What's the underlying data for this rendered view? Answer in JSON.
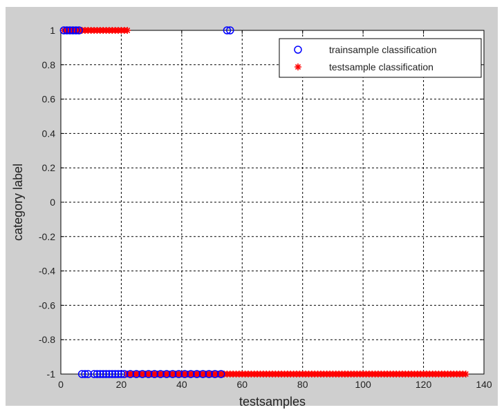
{
  "chart_data": {
    "type": "scatter",
    "title": "",
    "xlabel": "testsamples",
    "ylabel": "category label",
    "xlim": [
      0,
      140
    ],
    "ylim": [
      -1,
      1
    ],
    "x_ticks": [
      0,
      20,
      40,
      60,
      80,
      100,
      120,
      140
    ],
    "y_ticks": [
      -1,
      -0.8,
      -0.6,
      -0.4,
      -0.2,
      0,
      0.2,
      0.4,
      0.6,
      0.8,
      1
    ],
    "grid": true,
    "legend_position": "top-right",
    "series": [
      {
        "name": "trainsample classification",
        "marker": "circle",
        "color": "#0000ff",
        "points": [
          [
            1,
            1
          ],
          [
            2,
            1
          ],
          [
            3,
            1
          ],
          [
            4,
            1
          ],
          [
            5,
            1
          ],
          [
            6,
            1
          ],
          [
            55,
            1
          ],
          [
            56,
            1
          ],
          [
            7,
            -1
          ],
          [
            8,
            -1
          ],
          [
            9,
            -1
          ],
          [
            11,
            -1
          ],
          [
            12,
            -1
          ],
          [
            13,
            -1
          ],
          [
            14,
            -1
          ],
          [
            15,
            -1
          ],
          [
            16,
            -1
          ],
          [
            17,
            -1
          ],
          [
            18,
            -1
          ],
          [
            19,
            -1
          ],
          [
            20,
            -1
          ],
          [
            21,
            -1
          ],
          [
            23,
            -1
          ],
          [
            25,
            -1
          ],
          [
            27,
            -1
          ],
          [
            29,
            -1
          ],
          [
            31,
            -1
          ],
          [
            33,
            -1
          ],
          [
            35,
            -1
          ],
          [
            37,
            -1
          ],
          [
            39,
            -1
          ],
          [
            41,
            -1
          ],
          [
            43,
            -1
          ],
          [
            45,
            -1
          ],
          [
            47,
            -1
          ],
          [
            49,
            -1
          ],
          [
            51,
            -1
          ],
          [
            53,
            -1
          ]
        ]
      },
      {
        "name": "testsample classification",
        "marker": "star",
        "color": "#ff0000",
        "points": [
          [
            1,
            1
          ],
          [
            2,
            1
          ],
          [
            3,
            1
          ],
          [
            4,
            1
          ],
          [
            5,
            1
          ],
          [
            6,
            1
          ],
          [
            7,
            1
          ],
          [
            8,
            1
          ],
          [
            9,
            1
          ],
          [
            10,
            1
          ],
          [
            11,
            1
          ],
          [
            12,
            1
          ],
          [
            13,
            1
          ],
          [
            14,
            1
          ],
          [
            15,
            1
          ],
          [
            16,
            1
          ],
          [
            17,
            1
          ],
          [
            18,
            1
          ],
          [
            19,
            1
          ],
          [
            20,
            1
          ],
          [
            21,
            1
          ],
          [
            22,
            1
          ],
          [
            22,
            -1
          ],
          [
            23,
            -1
          ],
          [
            24,
            -1
          ],
          [
            25,
            -1
          ],
          [
            26,
            -1
          ],
          [
            27,
            -1
          ],
          [
            28,
            -1
          ],
          [
            29,
            -1
          ],
          [
            30,
            -1
          ],
          [
            31,
            -1
          ],
          [
            32,
            -1
          ],
          [
            33,
            -1
          ],
          [
            34,
            -1
          ],
          [
            35,
            -1
          ],
          [
            36,
            -1
          ],
          [
            37,
            -1
          ],
          [
            38,
            -1
          ],
          [
            39,
            -1
          ],
          [
            40,
            -1
          ],
          [
            41,
            -1
          ],
          [
            42,
            -1
          ],
          [
            43,
            -1
          ],
          [
            44,
            -1
          ],
          [
            45,
            -1
          ],
          [
            46,
            -1
          ],
          [
            47,
            -1
          ],
          [
            48,
            -1
          ],
          [
            49,
            -1
          ],
          [
            50,
            -1
          ],
          [
            51,
            -1
          ],
          [
            52,
            -1
          ],
          [
            53,
            -1
          ],
          [
            54,
            -1
          ],
          [
            55,
            -1
          ],
          [
            56,
            -1
          ],
          [
            57,
            -1
          ],
          [
            58,
            -1
          ],
          [
            59,
            -1
          ],
          [
            60,
            -1
          ],
          [
            61,
            -1
          ],
          [
            62,
            -1
          ],
          [
            63,
            -1
          ],
          [
            64,
            -1
          ],
          [
            65,
            -1
          ],
          [
            66,
            -1
          ],
          [
            67,
            -1
          ],
          [
            68,
            -1
          ],
          [
            69,
            -1
          ],
          [
            70,
            -1
          ],
          [
            71,
            -1
          ],
          [
            72,
            -1
          ],
          [
            73,
            -1
          ],
          [
            74,
            -1
          ],
          [
            75,
            -1
          ],
          [
            76,
            -1
          ],
          [
            77,
            -1
          ],
          [
            78,
            -1
          ],
          [
            79,
            -1
          ],
          [
            80,
            -1
          ],
          [
            81,
            -1
          ],
          [
            82,
            -1
          ],
          [
            83,
            -1
          ],
          [
            84,
            -1
          ],
          [
            85,
            -1
          ],
          [
            86,
            -1
          ],
          [
            87,
            -1
          ],
          [
            88,
            -1
          ],
          [
            89,
            -1
          ],
          [
            90,
            -1
          ],
          [
            91,
            -1
          ],
          [
            92,
            -1
          ],
          [
            93,
            -1
          ],
          [
            94,
            -1
          ],
          [
            95,
            -1
          ],
          [
            96,
            -1
          ],
          [
            97,
            -1
          ],
          [
            98,
            -1
          ],
          [
            99,
            -1
          ],
          [
            100,
            -1
          ],
          [
            101,
            -1
          ],
          [
            102,
            -1
          ],
          [
            103,
            -1
          ],
          [
            104,
            -1
          ],
          [
            105,
            -1
          ],
          [
            106,
            -1
          ],
          [
            107,
            -1
          ],
          [
            108,
            -1
          ],
          [
            109,
            -1
          ],
          [
            110,
            -1
          ],
          [
            111,
            -1
          ],
          [
            112,
            -1
          ],
          [
            113,
            -1
          ],
          [
            114,
            -1
          ],
          [
            115,
            -1
          ],
          [
            116,
            -1
          ],
          [
            117,
            -1
          ],
          [
            118,
            -1
          ],
          [
            119,
            -1
          ],
          [
            120,
            -1
          ],
          [
            121,
            -1
          ],
          [
            122,
            -1
          ],
          [
            123,
            -1
          ],
          [
            124,
            -1
          ],
          [
            125,
            -1
          ],
          [
            126,
            -1
          ],
          [
            127,
            -1
          ],
          [
            128,
            -1
          ],
          [
            129,
            -1
          ],
          [
            130,
            -1
          ],
          [
            131,
            -1
          ],
          [
            132,
            -1
          ],
          [
            133,
            -1
          ],
          [
            134,
            -1
          ]
        ]
      }
    ]
  }
}
